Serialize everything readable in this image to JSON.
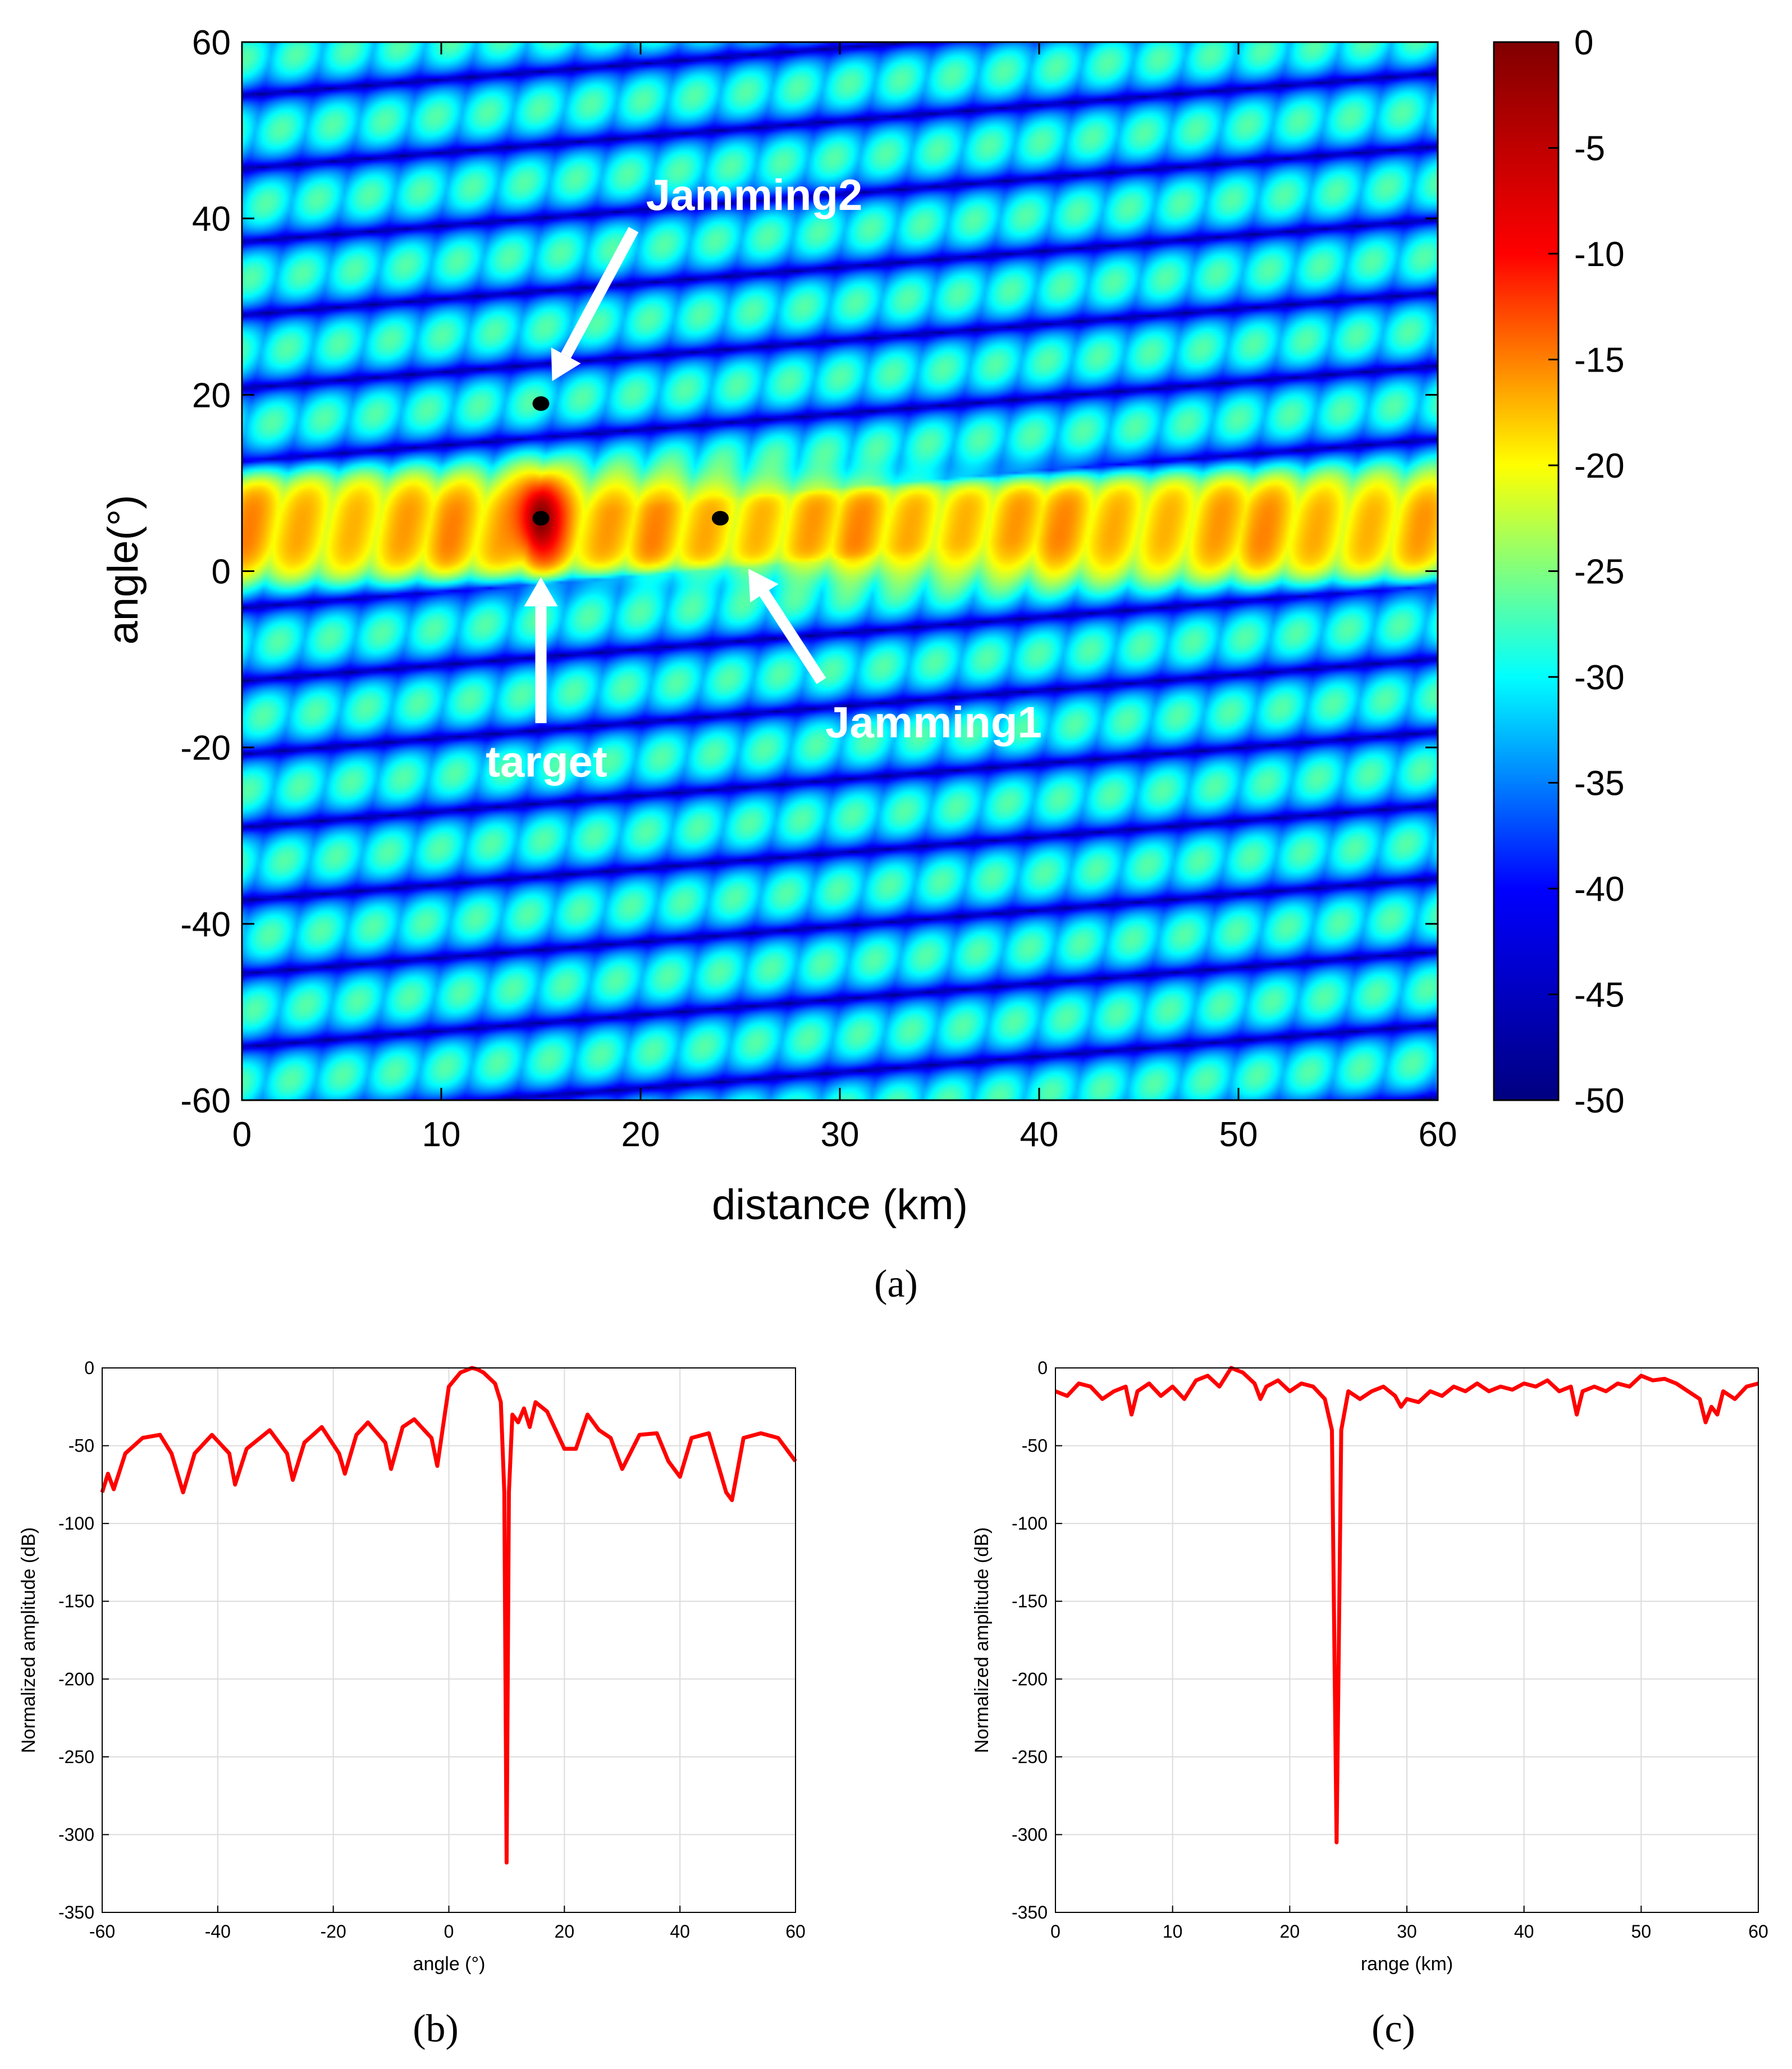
{
  "chart_data": [
    {
      "panel": "a",
      "type": "heatmap",
      "caption": "(a)",
      "xlabel": "distance (km)",
      "ylabel": "angle(°)",
      "xlim": [
        0,
        60
      ],
      "ylim": [
        -60,
        60
      ],
      "xticks": [
        "0",
        "10",
        "20",
        "30",
        "40",
        "50",
        "60"
      ],
      "yticks": [
        "60",
        "40",
        "20",
        "0",
        "-20",
        "-40",
        "-60"
      ],
      "colorbar": {
        "range": [
          -50,
          0
        ],
        "ticks": [
          "0",
          "-5",
          "-10",
          "-15",
          "-20",
          "-25",
          "-30",
          "-35",
          "-40",
          "-45",
          "-50"
        ],
        "colors": [
          "#000080",
          "#0000ff",
          "#00ffff",
          "#ffff00",
          "#ff0000",
          "#800000"
        ]
      },
      "mainlobe": {
        "angle_center": 5,
        "angle_halfwidth": 6,
        "level_db": -12
      },
      "peak": {
        "distance": 15,
        "angle": 6,
        "level_db": 0
      },
      "points": [
        {
          "name": "target",
          "distance": 15,
          "angle": 6,
          "label": "target"
        },
        {
          "name": "Jamming1",
          "distance": 24,
          "angle": 6,
          "label": "Jamming1"
        },
        {
          "name": "Jamming2",
          "distance": 15,
          "angle": 19,
          "label": "Jamming2"
        }
      ]
    },
    {
      "panel": "b",
      "type": "line",
      "caption": "(b)",
      "xlabel": "angle (°)",
      "ylabel": "Normalized amplitude (dB)",
      "xlim": [
        -60,
        60
      ],
      "ylim": [
        -350,
        0
      ],
      "xticks": [
        "-60",
        "-40",
        "-20",
        "0",
        "20",
        "40",
        "60"
      ],
      "yticks": [
        "0",
        "-50",
        "-100",
        "-150",
        "-200",
        "-250",
        "-300",
        "-350"
      ],
      "line_color": "#ff0000",
      "x": [
        -60,
        -59,
        -58,
        -56,
        -53,
        -50,
        -48,
        -46,
        -44,
        -41,
        -38,
        -37,
        -35,
        -31,
        -28,
        -27,
        -25,
        -22,
        -19,
        -18,
        -16,
        -14,
        -11,
        -10,
        -8,
        -6,
        -3,
        -2,
        0,
        2,
        4,
        5,
        6,
        8,
        9,
        9.6,
        10,
        10.4,
        11,
        12,
        13,
        14,
        15,
        17,
        20,
        22,
        24,
        26,
        28,
        30,
        33,
        36,
        38,
        40,
        42,
        45,
        48,
        49,
        51,
        54,
        57,
        60
      ],
      "values": [
        -80,
        -68,
        -78,
        -55,
        -45,
        -43,
        -55,
        -80,
        -55,
        -43,
        -55,
        -75,
        -52,
        -40,
        -55,
        -72,
        -48,
        -38,
        -55,
        -68,
        -43,
        -35,
        -48,
        -65,
        -38,
        -33,
        -45,
        -63,
        -12,
        -3,
        0,
        -1,
        -3,
        -10,
        -22,
        -80,
        -318,
        -80,
        -30,
        -35,
        -26,
        -38,
        -22,
        -28,
        -52,
        -52,
        -30,
        -40,
        -45,
        -65,
        -43,
        -42,
        -60,
        -70,
        -45,
        -42,
        -80,
        -85,
        -45,
        -42,
        -45,
        -60
      ]
    },
    {
      "panel": "c",
      "type": "line",
      "caption": "(c)",
      "xlabel": "range (km)",
      "ylabel": "Normalized amplitude (dB)",
      "xlim": [
        0,
        60
      ],
      "ylim": [
        -350,
        0
      ],
      "xticks": [
        "0",
        "10",
        "20",
        "30",
        "40",
        "50",
        "60"
      ],
      "yticks": [
        "0",
        "-50",
        "-100",
        "-150",
        "-200",
        "-250",
        "-300",
        "-350"
      ],
      "line_color": "#ff0000",
      "x": [
        0,
        1,
        2,
        3,
        4,
        5,
        6,
        6.5,
        7,
        8,
        9,
        10,
        11,
        12,
        13,
        14,
        15,
        16,
        17,
        17.5,
        18,
        19,
        20,
        21,
        22,
        23,
        23.6,
        24,
        24.4,
        25,
        26,
        27,
        28,
        29,
        29.5,
        30,
        31,
        32,
        33,
        34,
        35,
        36,
        37,
        38,
        39,
        40,
        41,
        42,
        43,
        44,
        44.5,
        45,
        46,
        47,
        48,
        49,
        50,
        51,
        52,
        53,
        54,
        55,
        55.5,
        56,
        56.5,
        57,
        58,
        59,
        60
      ],
      "values": [
        -15,
        -18,
        -10,
        -12,
        -20,
        -15,
        -12,
        -30,
        -15,
        -10,
        -18,
        -12,
        -20,
        -8,
        -5,
        -12,
        0,
        -3,
        -10,
        -20,
        -12,
        -8,
        -15,
        -10,
        -12,
        -20,
        -40,
        -305,
        -40,
        -15,
        -20,
        -15,
        -12,
        -18,
        -25,
        -20,
        -22,
        -15,
        -18,
        -12,
        -15,
        -10,
        -15,
        -12,
        -14,
        -10,
        -12,
        -8,
        -15,
        -12,
        -30,
        -15,
        -12,
        -15,
        -10,
        -12,
        -5,
        -8,
        -7,
        -10,
        -15,
        -20,
        -35,
        -25,
        -30,
        -15,
        -20,
        -12,
        -10
      ]
    }
  ]
}
